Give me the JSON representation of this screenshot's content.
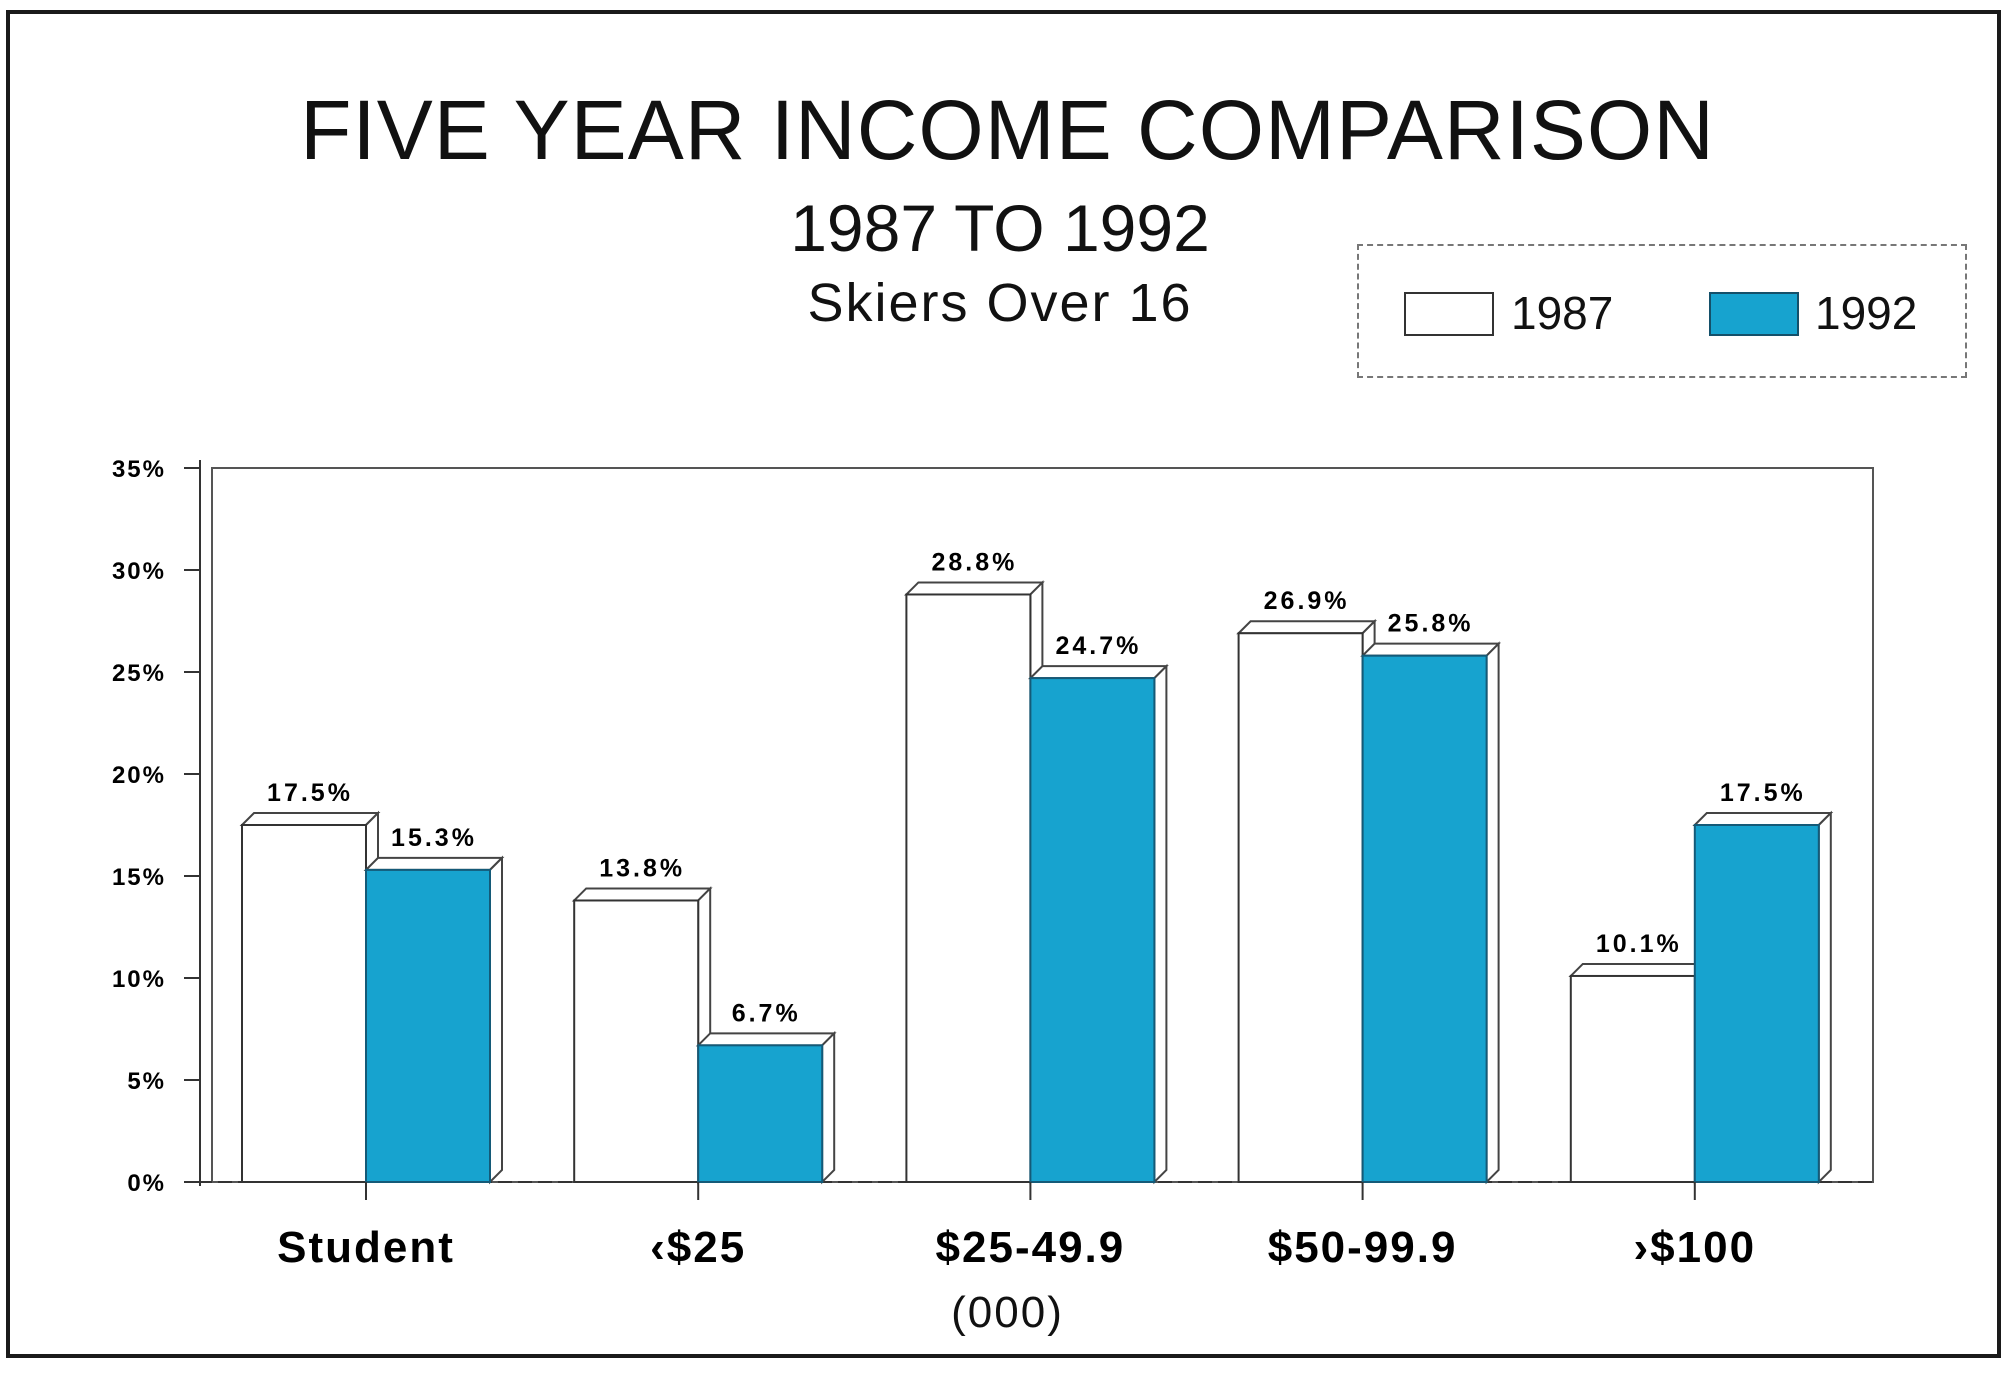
{
  "chart_data": {
    "type": "bar",
    "title": "FIVE YEAR INCOME COMPARISON",
    "subtitle": "1987 TO 1992",
    "subtitle2": "Skiers Over 16",
    "xlabel": "(000)",
    "ylabel": "",
    "categories": [
      "Student",
      "‹$25",
      "$25-49.9",
      "$50-99.9",
      "›$100"
    ],
    "series": [
      {
        "name": "1987",
        "values": [
          17.5,
          13.8,
          28.8,
          26.9,
          10.1
        ],
        "labels": [
          "17.5%",
          "13.8%",
          "28.8%",
          "26.9%",
          "10.1%"
        ],
        "color": "#ffffff"
      },
      {
        "name": "1992",
        "values": [
          15.3,
          6.7,
          24.7,
          25.8,
          17.5
        ],
        "labels": [
          "15.3%",
          "6.7%",
          "24.7%",
          "25.8%",
          "17.5%"
        ],
        "color": "#17a3cf"
      }
    ],
    "ylim": [
      0,
      35
    ],
    "yticks": [
      "0%",
      "5%",
      "10%",
      "15%",
      "20%",
      "25%",
      "30%",
      "35%"
    ],
    "legend": "top-right",
    "grid": false
  }
}
